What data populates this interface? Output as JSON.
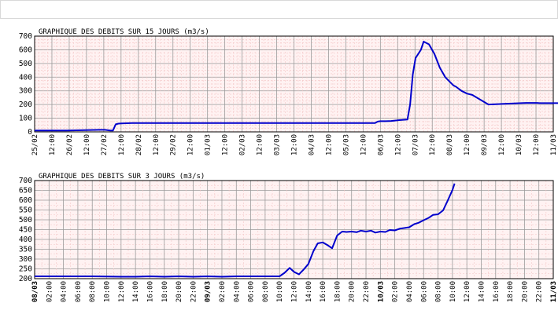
{
  "colors": {
    "line": "#0000cc",
    "plot_bg": "#fff2f2",
    "grid_minor": "#f3c6c6",
    "grid_major": "#9a9a9a"
  },
  "chart_data": [
    {
      "type": "line",
      "title": "GRAPHIQUE DES DEBITS SUR 15 JOURS (m3/s)",
      "xlabel": "",
      "ylabel": "",
      "ylim": [
        0,
        700
      ],
      "yticks": [
        "0",
        "100",
        "200",
        "300",
        "400",
        "500",
        "600",
        "700"
      ],
      "xlim_hours": [
        0,
        384
      ],
      "xticks": [
        "25/02",
        "12:00",
        "26/02",
        "12:00",
        "27/02",
        "12:00",
        "28/02",
        "12:00",
        "29/02",
        "12:00",
        "01/03",
        "12:00",
        "02/03",
        "12:00",
        "03/03",
        "12:00",
        "04/03",
        "12:00",
        "05/03",
        "12:00",
        "06/03",
        "12:00",
        "07/03",
        "12:00",
        "08/03",
        "12:00",
        "09/03",
        "12:00",
        "10/03",
        "12:00",
        "11/03"
      ],
      "grid": true,
      "series": [
        {
          "x": [
            0,
            24,
            48,
            52,
            56,
            58,
            60,
            62,
            64,
            72,
            96,
            120,
            144,
            168,
            192,
            210,
            216,
            228,
            240,
            252,
            254,
            256,
            258,
            260,
            264,
            266,
            268,
            270,
            272,
            276,
            278,
            280,
            282,
            286,
            288,
            292,
            296,
            300,
            304,
            310,
            312,
            316,
            320,
            324,
            336,
            360,
            364,
            368,
            372,
            374,
            376,
            378,
            380,
            384,
            386,
            390,
            392,
            396,
            400,
            404,
            406,
            408,
            410,
            412,
            416,
            420,
            424
          ],
          "y": [
            10,
            10,
            15,
            15,
            10,
            10,
            55,
            60,
            62,
            65,
            65,
            65,
            65,
            65,
            65,
            65,
            65,
            65,
            65,
            65,
            75,
            78,
            78,
            78,
            80,
            82,
            84,
            86,
            88,
            90,
            200,
            420,
            540,
            600,
            660,
            640,
            570,
            470,
            400,
            340,
            330,
            300,
            280,
            270,
            200,
            210,
            212,
            212,
            212,
            210,
            210,
            210,
            210,
            210,
            210,
            210,
            210,
            210,
            210,
            212,
            212,
            212,
            212,
            212,
            212,
            212,
            212
          ]
        }
      ]
    },
    {
      "type": "line",
      "title": "GRAPHIQUE DES DEBITS SUR 3 JOURS (m3/s)",
      "xlabel": "",
      "ylabel": "",
      "ylim": [
        200,
        700
      ],
      "yticks": [
        "200",
        "250",
        "300",
        "350",
        "400",
        "450",
        "500",
        "550",
        "600",
        "650",
        "700"
      ],
      "xlim_hours": [
        0,
        72
      ],
      "xticks": [
        "08/03",
        "02:00",
        "04:00",
        "06:00",
        "08:00",
        "10:00",
        "12:00",
        "14:00",
        "16:00",
        "18:00",
        "20:00",
        "22:00",
        "09/03",
        "02:00",
        "04:00",
        "06:00",
        "08:00",
        "10:00",
        "12:00",
        "14:00",
        "16:00",
        "18:00",
        "20:00",
        "22:00",
        "10/03",
        "02:00",
        "04:00",
        "06:00",
        "08:00",
        "10:00",
        "12:00",
        "14:00",
        "16:00",
        "18:00",
        "20:00",
        "22:00",
        "11/03"
      ],
      "grid": true,
      "series": [
        {
          "x": [
            0,
            4,
            8,
            12,
            14,
            16,
            18,
            20,
            22,
            24,
            26,
            28,
            30,
            32,
            34,
            34.7,
            35.4,
            36,
            36.7,
            37.3,
            38,
            38.7,
            39.3,
            40,
            40.7,
            41.3,
            42,
            42.7,
            43.3,
            44,
            44.7,
            45.3,
            46,
            46.7,
            47.3,
            48,
            48.7,
            49.3,
            50,
            50.7,
            51.3,
            52,
            52.7,
            53.3,
            54,
            54.7,
            55.3,
            56,
            56.7,
            57.3,
            58,
            58.3
          ],
          "y": [
            212,
            212,
            212,
            210,
            210,
            212,
            210,
            212,
            210,
            212,
            210,
            212,
            212,
            212,
            212,
            230,
            255,
            235,
            222,
            245,
            275,
            340,
            380,
            385,
            370,
            355,
            420,
            440,
            438,
            440,
            437,
            445,
            440,
            445,
            435,
            440,
            438,
            448,
            446,
            455,
            458,
            462,
            478,
            485,
            498,
            510,
            525,
            528,
            548,
            595,
            652,
            685
          ]
        }
      ]
    }
  ]
}
